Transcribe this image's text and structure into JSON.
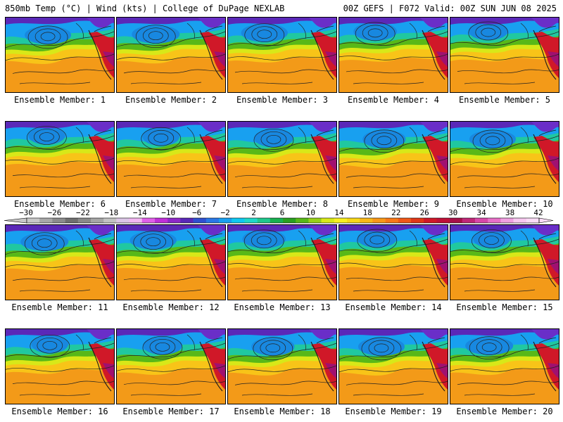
{
  "header": {
    "title": "850mb Temp (°C) | Wind (kts) | College of DuPage NEXLAB",
    "run_info": "00Z GEFS | F072 Valid: 00Z SUN JUN 08 2025"
  },
  "members": [
    {
      "label": "Ensemble Member: 1"
    },
    {
      "label": "Ensemble Member: 2"
    },
    {
      "label": "Ensemble Member: 3"
    },
    {
      "label": "Ensemble Member: 4"
    },
    {
      "label": "Ensemble Member: 5"
    },
    {
      "label": "Ensemble Member: 6"
    },
    {
      "label": "Ensemble Member: 7"
    },
    {
      "label": "Ensemble Member: 8"
    },
    {
      "label": "Ensemble Member: 9"
    },
    {
      "label": "Ensemble Member: 10"
    },
    {
      "label": "Ensemble Member: 11"
    },
    {
      "label": "Ensemble Member: 12"
    },
    {
      "label": "Ensemble Member: 13"
    },
    {
      "label": "Ensemble Member: 14"
    },
    {
      "label": "Ensemble Member: 15"
    },
    {
      "label": "Ensemble Member: 16"
    },
    {
      "label": "Ensemble Member: 17"
    },
    {
      "label": "Ensemble Member: 18"
    },
    {
      "label": "Ensemble Member: 19"
    },
    {
      "label": "Ensemble Member: 20"
    }
  ],
  "colorbar": {
    "ticks": [
      "−30",
      "−26",
      "−22",
      "−18",
      "−14",
      "−10",
      "−6",
      "−2",
      "2",
      "6",
      "10",
      "14",
      "18",
      "22",
      "26",
      "30",
      "34",
      "38",
      "42"
    ],
    "colors": [
      "#c8c8c8",
      "#a8a8a8",
      "#8c8c8c",
      "#707070",
      "#8a8a8a",
      "#a6a6a6",
      "#c2c2c2",
      "#dcc6e6",
      "#f2b6f2",
      "#e060e8",
      "#c030d8",
      "#8e28c8",
      "#5a28b8",
      "#3050d0",
      "#2a78e6",
      "#18a0f0",
      "#10c8f0",
      "#20d8c8",
      "#20c88c",
      "#18b050",
      "#2aa020",
      "#58b818",
      "#98d018",
      "#d8e818",
      "#f8f020",
      "#f8d818",
      "#f8b818",
      "#f89818",
      "#f87818",
      "#f05818",
      "#e03818",
      "#d01828",
      "#c01038",
      "#a81048",
      "#c02878",
      "#d848a8",
      "#e870c8",
      "#f0a0e0",
      "#f8c8f0",
      "#fadcf6"
    ]
  },
  "palette": {
    "cold": "#5a28b8",
    "cool": "#18a0f0",
    "teal": "#20c8a0",
    "green": "#58b818",
    "yellow": "#d8e818",
    "orange": "#f39a18",
    "hot": "#d01828",
    "magenta": "#a01070"
  }
}
